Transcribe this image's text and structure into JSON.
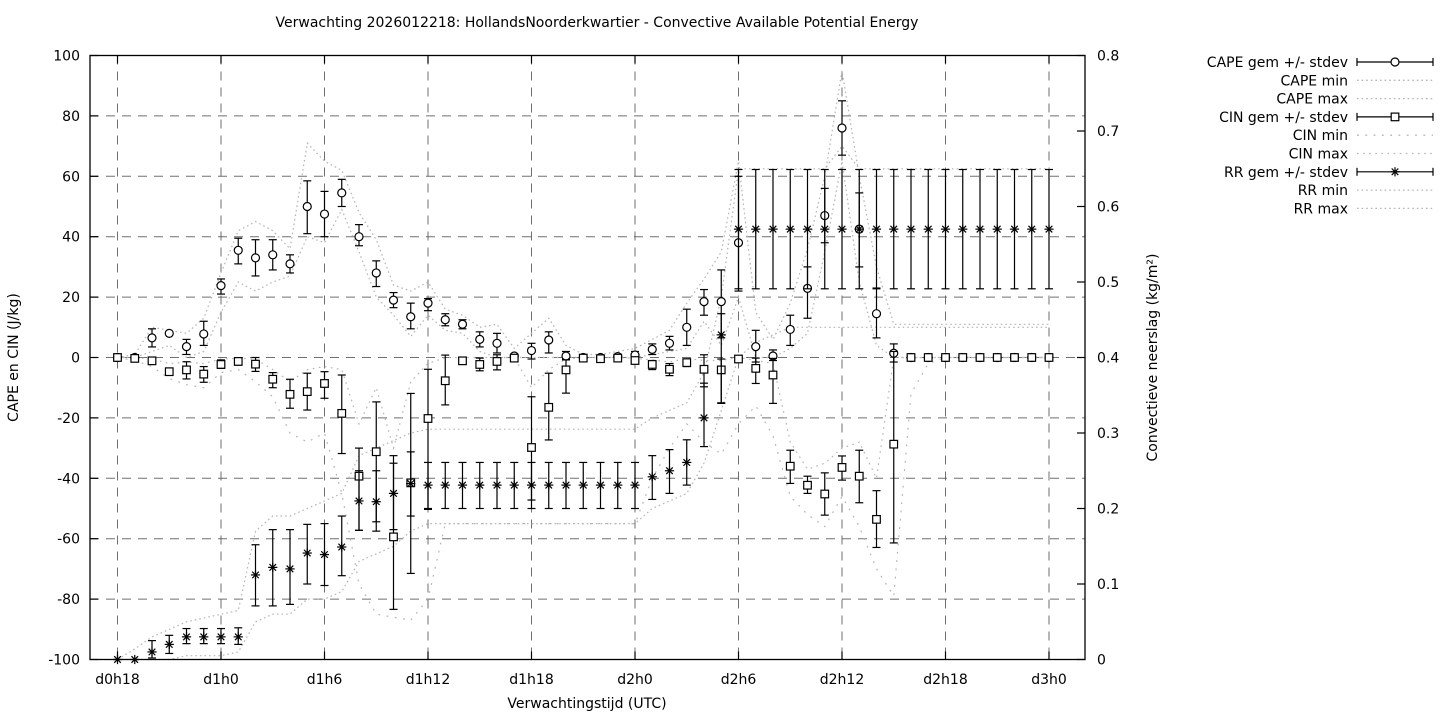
{
  "chart_data": {
    "type": "line",
    "subtype": "errorbars-with-min-max-envelopes",
    "title": "Verwachting 2026012218: HollandsNoorderkwartier - Convective Available Potential Energy",
    "xlabel": "Verwachtingstijd (UTC)",
    "ylabel_left": "CAPE en CIN (J/kg)",
    "ylabel_right": "Convectieve neerslag (kg/m²)",
    "grid": true,
    "legend_position": "outside-right-top",
    "x_axis": {
      "start_hour": 18,
      "end_hour": 72,
      "ticks": [
        {
          "label": "d0h18",
          "hour": 18
        },
        {
          "label": "d1h0",
          "hour": 24
        },
        {
          "label": "d1h6",
          "hour": 30
        },
        {
          "label": "d1h12",
          "hour": 36
        },
        {
          "label": "d1h18",
          "hour": 42
        },
        {
          "label": "d2h0",
          "hour": 48
        },
        {
          "label": "d2h6",
          "hour": 54
        },
        {
          "label": "d2h12",
          "hour": 60
        },
        {
          "label": "d2h18",
          "hour": 66
        },
        {
          "label": "d3h0",
          "hour": 72
        }
      ]
    },
    "y_left": {
      "min": -100,
      "max": 100,
      "ticks": [
        {
          "label": "100",
          "value": 100
        },
        {
          "label": "80",
          "value": 80
        },
        {
          "label": "60",
          "value": 60
        },
        {
          "label": "40",
          "value": 40
        },
        {
          "label": "20",
          "value": 20
        },
        {
          "label": "0",
          "value": 0
        },
        {
          "label": "-20",
          "value": -20
        },
        {
          "label": "-40",
          "value": -40
        },
        {
          "label": "-60",
          "value": -60
        },
        {
          "label": "-80",
          "value": -80
        },
        {
          "label": "-100",
          "value": -100
        }
      ]
    },
    "y_right": {
      "min": 0,
      "max": 0.8,
      "ticks": [
        {
          "label": "0.8",
          "value": 0.8
        },
        {
          "label": "0.7",
          "value": 0.7
        },
        {
          "label": "0.6",
          "value": 0.6
        },
        {
          "label": "0.5",
          "value": 0.5
        },
        {
          "label": "0.4",
          "value": 0.4
        },
        {
          "label": "0.3",
          "value": 0.3
        },
        {
          "label": "0.2",
          "value": 0.2
        },
        {
          "label": "0.1",
          "value": 0.1
        },
        {
          "label": "0",
          "value": 0
        }
      ]
    },
    "hours": [
      18,
      19,
      20,
      21,
      22,
      23,
      24,
      25,
      26,
      27,
      28,
      29,
      30,
      31,
      32,
      33,
      34,
      35,
      36,
      37,
      38,
      39,
      40,
      41,
      42,
      43,
      44,
      45,
      46,
      47,
      48,
      49,
      50,
      51,
      52,
      53,
      54,
      55,
      56,
      57,
      58,
      59,
      60,
      61,
      62,
      63,
      64,
      65,
      66,
      67,
      68,
      69,
      70,
      71,
      72
    ],
    "series": {
      "cape": {
        "name": "CAPE",
        "axis": "left",
        "marker": "circle",
        "mean": [
          0,
          0,
          6.5,
          8,
          3.6,
          7.8,
          23.8,
          35.5,
          33,
          34,
          31,
          50,
          47.5,
          54.5,
          40,
          28,
          19,
          13.5,
          18,
          12.5,
          11,
          6,
          4.7,
          0.5,
          2.3,
          5.8,
          0.5,
          0,
          0,
          0.3,
          0.8,
          2.7,
          4.7,
          10,
          18.5,
          18.5,
          38,
          3.6,
          0.5,
          9.3,
          22.9,
          47,
          76,
          42.5,
          14.5,
          1.4,
          0,
          0,
          0,
          0,
          0,
          0,
          0,
          0,
          0
        ],
        "lo": [
          0,
          0,
          3.5,
          8,
          1,
          4,
          21,
          31,
          27,
          29,
          28,
          41,
          40,
          50,
          37,
          23.5,
          16.5,
          9.5,
          15.5,
          10.5,
          9.5,
          3.5,
          1.5,
          0.5,
          -0.5,
          1.5,
          -0.5,
          0,
          0,
          0.3,
          -0.5,
          1,
          2.5,
          4,
          14,
          6.5,
          22,
          -1.5,
          -1,
          4,
          13,
          38,
          67,
          30,
          6.5,
          -1.5,
          0,
          0,
          0,
          0,
          0,
          0,
          0,
          0,
          0
        ],
        "hi": [
          0,
          0,
          9.5,
          8,
          6,
          12,
          26,
          39.5,
          39,
          39,
          34,
          58.5,
          55,
          59,
          44,
          32,
          21.5,
          18,
          19.5,
          14.5,
          12.5,
          8.5,
          8,
          0.5,
          4.7,
          8.5,
          2,
          0,
          0,
          0.3,
          2,
          4.5,
          7,
          16,
          22.5,
          29,
          60,
          9,
          2.5,
          14,
          30,
          56,
          85,
          54.5,
          23,
          4.5,
          0,
          0,
          0,
          0,
          0,
          0,
          0,
          0,
          0
        ],
        "min": [
          0,
          0,
          2,
          4,
          0,
          2,
          15,
          25,
          22,
          25,
          27,
          40,
          38,
          49,
          35,
          20,
          14,
          7,
          14,
          9,
          8,
          2,
          0,
          0,
          0,
          0,
          0,
          0,
          0,
          0,
          0,
          1,
          2,
          3,
          12,
          4,
          20,
          0,
          0,
          3,
          8,
          35,
          65,
          25,
          4,
          0,
          0,
          0,
          0,
          0,
          0,
          0,
          0,
          0,
          0
        ],
        "max": [
          0,
          1,
          10,
          9,
          8,
          13,
          28,
          42,
          45,
          42,
          36,
          71,
          65,
          62,
          48,
          39,
          24,
          22,
          25,
          16,
          14,
          10,
          11,
          3,
          8,
          13,
          4,
          1,
          1,
          2,
          3,
          6,
          9,
          18,
          26,
          35,
          65,
          15,
          6,
          18,
          36,
          60,
          95,
          60,
          30,
          11,
          11,
          11,
          11,
          11,
          11,
          11,
          11,
          11,
          11
        ]
      },
      "cin": {
        "name": "CIN",
        "axis": "left",
        "marker": "square",
        "mean": [
          0,
          -0.3,
          -1.1,
          -4.7,
          -4.1,
          -5.5,
          -2.3,
          -1.3,
          -2.2,
          -7.2,
          -12.2,
          -11.3,
          -8.6,
          -18.5,
          -39.3,
          -31.2,
          -59.4,
          -41.5,
          -20.2,
          -7.7,
          -1.1,
          -2.3,
          -1.3,
          -0.2,
          -29.8,
          -16.5,
          -4.1,
          -0.2,
          -0.4,
          -0.2,
          -1,
          -2.3,
          -3.9,
          -1.7,
          -3.9,
          -4.1,
          -0.5,
          -3.6,
          -5.8,
          -36,
          -42.3,
          -45.2,
          -36.4,
          -39.3,
          -53.6,
          -28.7,
          0,
          0,
          0,
          0,
          0,
          0,
          0,
          0,
          0
        ],
        "lo": [
          0,
          -0.3,
          -2,
          -4.7,
          -7.1,
          -8.2,
          -3.6,
          -2.5,
          -4.6,
          -10,
          -16.8,
          -17.4,
          -13.5,
          -31.8,
          -57.2,
          -54.4,
          -83.4,
          -71.5,
          -50.3,
          -15.7,
          -2,
          -4.4,
          -4.1,
          -0.2,
          -47.2,
          -27.3,
          -11.8,
          -0.2,
          -0.4,
          -0.2,
          -2,
          -4,
          -6,
          -3,
          -9.7,
          -15.2,
          -0.5,
          -8.6,
          -15.2,
          -41.7,
          -45,
          -52.2,
          -40.6,
          -48.1,
          -62.9,
          -61.4,
          0,
          0,
          0,
          0,
          0,
          0,
          0,
          0,
          0
        ],
        "hi": [
          0,
          -0.3,
          -0.5,
          -4.7,
          -1.4,
          -3,
          -0.8,
          -0.5,
          0,
          -5,
          -7.2,
          -5.2,
          -4.7,
          -5.8,
          -30,
          -14.7,
          -35,
          -11.9,
          -3.9,
          0.8,
          -0.5,
          -0.2,
          0.9,
          -0.2,
          -13,
          -5.2,
          -0.8,
          -0.2,
          -0.4,
          -0.2,
          -0.3,
          -1,
          -2,
          -0.5,
          0.9,
          -0.5,
          -0.5,
          -0.2,
          -0.3,
          -30.7,
          -39.3,
          -38.2,
          -32.6,
          -30.7,
          -44.1,
          2,
          0,
          0,
          0,
          0,
          0,
          0,
          0,
          0,
          0
        ],
        "min": [
          0,
          -1,
          -3,
          -7,
          -9,
          -10,
          -5,
          -4,
          -8,
          -13,
          -25,
          -28,
          -25,
          -45,
          -75,
          -85,
          -86,
          -87,
          -80,
          -55,
          -55,
          -55,
          -55,
          -55,
          -55,
          -55,
          -55,
          -55,
          -55,
          -55,
          -55,
          -40,
          -30,
          -22,
          -28,
          -32,
          -22,
          -16,
          -26,
          -46,
          -52,
          -56,
          -46,
          -56,
          -70,
          -79,
          -12,
          -2,
          0,
          0,
          0,
          0,
          0,
          0,
          0
        ],
        "max": [
          0,
          0,
          -0.5,
          -2,
          -1.5,
          -2,
          -0.5,
          -0.3,
          -0.5,
          -4,
          -8,
          -4,
          -3,
          -4,
          -22,
          -10,
          -30,
          -8,
          -2,
          0,
          0,
          0,
          0,
          0,
          -10,
          -4,
          -0.5,
          0,
          0,
          0,
          -0.3,
          -0.8,
          -1.5,
          -0.3,
          -1,
          -1,
          0,
          -1,
          -2,
          -28,
          -37,
          -35,
          -30,
          -28,
          -40,
          0,
          0,
          0,
          0,
          0,
          0,
          0,
          0,
          0,
          0
        ]
      },
      "rr": {
        "name": "RR",
        "axis": "right",
        "marker": "star",
        "mean": [
          0,
          0,
          0.01,
          0.02,
          0.03,
          0.03,
          0.03,
          0.03,
          0.112,
          0.122,
          0.12,
          0.141,
          0.139,
          0.149,
          0.21,
          0.209,
          0.22,
          0.233,
          0.231,
          0.231,
          0.231,
          0.231,
          0.231,
          0.231,
          0.231,
          0.231,
          0.231,
          0.231,
          0.231,
          0.231,
          0.231,
          0.242,
          0.25,
          0.261,
          0.32,
          0.43,
          0.57,
          0.57,
          0.57,
          0.57,
          0.57,
          0.57,
          0.57,
          0.57,
          0.57,
          0.57,
          0.57,
          0.57,
          0.57,
          0.57,
          0.57,
          0.57,
          0.57,
          0.57,
          0.57
        ],
        "lo": [
          0,
          0,
          0.002,
          0.008,
          0.021,
          0.021,
          0.021,
          0.02,
          0.071,
          0.071,
          0.073,
          0.1,
          0.098,
          0.111,
          0.171,
          0.17,
          0.172,
          0.19,
          0.2,
          0.2,
          0.2,
          0.2,
          0.2,
          0.2,
          0.2,
          0.2,
          0.2,
          0.2,
          0.2,
          0.2,
          0.2,
          0.212,
          0.22,
          0.231,
          0.282,
          0.34,
          0.491,
          0.491,
          0.491,
          0.491,
          0.491,
          0.491,
          0.491,
          0.491,
          0.491,
          0.491,
          0.491,
          0.491,
          0.491,
          0.491,
          0.491,
          0.491,
          0.491,
          0.491,
          0.491
        ],
        "hi": [
          0,
          0,
          0.025,
          0.032,
          0.041,
          0.041,
          0.041,
          0.042,
          0.152,
          0.172,
          0.172,
          0.179,
          0.18,
          0.19,
          0.25,
          0.25,
          0.27,
          0.275,
          0.261,
          0.261,
          0.261,
          0.261,
          0.261,
          0.261,
          0.261,
          0.261,
          0.261,
          0.261,
          0.261,
          0.261,
          0.261,
          0.27,
          0.278,
          0.291,
          0.366,
          0.458,
          0.649,
          0.649,
          0.649,
          0.649,
          0.649,
          0.649,
          0.649,
          0.649,
          0.649,
          0.649,
          0.649,
          0.649,
          0.649,
          0.649,
          0.649,
          0.649,
          0.649,
          0.649,
          0.649
        ],
        "min": [
          0,
          0,
          0,
          0,
          0.005,
          0.005,
          0.005,
          0.01,
          0.05,
          0.06,
          0.06,
          0.08,
          0.08,
          0.09,
          0.13,
          0.14,
          0.15,
          0.17,
          0.18,
          0.18,
          0.18,
          0.18,
          0.18,
          0.18,
          0.18,
          0.18,
          0.18,
          0.18,
          0.18,
          0.18,
          0.18,
          0.2,
          0.21,
          0.22,
          0.26,
          0.33,
          0.4,
          0.42,
          0.43,
          0.44,
          0.44,
          0.44,
          0.44,
          0.44,
          0.44,
          0.44,
          0.44,
          0.44,
          0.44,
          0.44,
          0.44,
          0.44,
          0.44,
          0.44,
          0.44
        ],
        "max": [
          0,
          0.014,
          0.03,
          0.04,
          0.05,
          0.055,
          0.06,
          0.065,
          0.17,
          0.19,
          0.19,
          0.2,
          0.21,
          0.22,
          0.27,
          0.28,
          0.29,
          0.3,
          0.305,
          0.305,
          0.305,
          0.305,
          0.305,
          0.305,
          0.305,
          0.305,
          0.305,
          0.305,
          0.305,
          0.305,
          0.305,
          0.32,
          0.33,
          0.34,
          0.38,
          0.48,
          0.65,
          0.65,
          0.65,
          0.65,
          0.65,
          0.65,
          0.68,
          0.65,
          0.65,
          0.65,
          0.65,
          0.65,
          0.65,
          0.65,
          0.65,
          0.65,
          0.65,
          0.65,
          0.65
        ]
      }
    },
    "legend": [
      {
        "label": "CAPE gem +/- stdev",
        "type": "errorbar",
        "marker": "circle"
      },
      {
        "label": "CAPE min",
        "type": "dotted",
        "style": "fine"
      },
      {
        "label": "CAPE max",
        "type": "dotted",
        "style": "fine"
      },
      {
        "label": "CIN gem +/- stdev",
        "type": "errorbar",
        "marker": "square"
      },
      {
        "label": "CIN min",
        "type": "dotted",
        "style": "sparse"
      },
      {
        "label": "CIN max",
        "type": "dotted",
        "style": "medium"
      },
      {
        "label": "RR gem +/- stdev",
        "type": "errorbar",
        "marker": "star"
      },
      {
        "label": "RR min",
        "type": "dotted",
        "style": "fine"
      },
      {
        "label": "RR max",
        "type": "dotted",
        "style": "fine"
      }
    ],
    "colors": {
      "foreground": "#000000",
      "grid": "#606060",
      "envelope": "#b5b5b5",
      "background": "#ffffff"
    }
  }
}
